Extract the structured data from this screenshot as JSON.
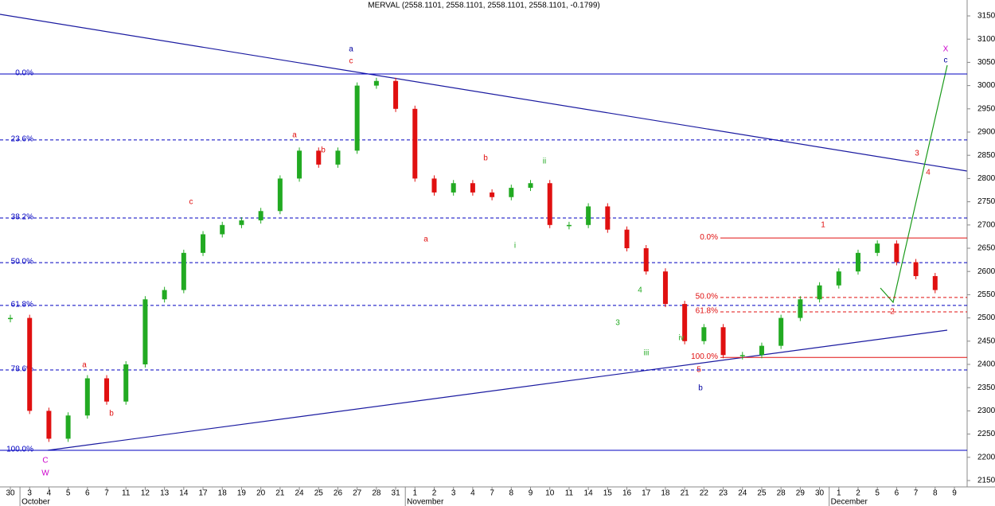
{
  "chart_data": {
    "type": "candle-close",
    "title": "MERVAL (2558.1101, 2558.1101, 2558.1101, 2558.1101, -0.1799)",
    "categories": [
      "30",
      "3",
      "4",
      "5",
      "6",
      "7",
      "11",
      "12",
      "13",
      "14",
      "17",
      "18",
      "19",
      "20",
      "21",
      "24",
      "25",
      "26",
      "27",
      "28",
      "31",
      "1",
      "2",
      "3",
      "4",
      "7",
      "8",
      "9",
      "10",
      "11",
      "14",
      "15",
      "16",
      "17",
      "18",
      "21",
      "22",
      "23",
      "24",
      "25",
      "28",
      "29",
      "30",
      "1",
      "2",
      "5",
      "6",
      "7",
      "8",
      "9"
    ],
    "months": [
      {
        "label": "October",
        "index": 1
      },
      {
        "label": "November",
        "index": 21
      },
      {
        "label": "December",
        "index": 43
      }
    ],
    "series": [
      {
        "name": "MERVAL",
        "up_color": "#22aa22",
        "down_color": "#e01010",
        "values": [
          2500,
          2300,
          2240,
          2290,
          2370,
          2320,
          2400,
          2540,
          2560,
          2640,
          2680,
          2700,
          2710,
          2730,
          2800,
          2860,
          2830,
          2860,
          3000,
          3010,
          2950,
          2800,
          2770,
          2790,
          2770,
          2760,
          2780,
          2790,
          2700,
          2700,
          2740,
          2690,
          2650,
          2600,
          2530,
          2450,
          2480,
          2420,
          2420,
          2440,
          2500,
          2540,
          2570,
          2600,
          2640,
          2660,
          2620,
          2590,
          2560,
          null
        ]
      }
    ],
    "ylim": [
      2150,
      3150
    ],
    "yticks": [
      2150,
      2200,
      2250,
      2300,
      2350,
      2400,
      2450,
      2500,
      2550,
      2600,
      2650,
      2700,
      2750,
      2800,
      2850,
      2900,
      2950,
      3000,
      3050,
      3100,
      3150
    ],
    "fib_main": {
      "color": "#0000c0",
      "levels": [
        {
          "label": "0.0%",
          "value": 3025
        },
        {
          "label": "23.6%",
          "value": 2883
        },
        {
          "label": "38.2%",
          "value": 2715
        },
        {
          "label": "50.0%",
          "value": 2619
        },
        {
          "label": "61.8%",
          "value": 2527
        },
        {
          "label": "78.6%",
          "value": 2388
        },
        {
          "label": "100.0%",
          "value": 2215
        }
      ]
    },
    "fib_second": {
      "color": "#e01010",
      "levels": [
        {
          "label": "0.0%",
          "value": 2672
        },
        {
          "label": "50.0%",
          "value": 2544
        },
        {
          "label": "61.8%",
          "value": 2513
        },
        {
          "label": "100.0%",
          "value": 2415
        }
      ]
    },
    "annotations": [
      {
        "text": "a",
        "color": "#0000a0"
      },
      {
        "text": "c",
        "color": "#e01010"
      },
      {
        "text": "a",
        "color": "#e01010"
      },
      {
        "text": "b",
        "color": "#e01010"
      },
      {
        "text": "c",
        "color": "#e01010"
      },
      {
        "text": "a",
        "color": "#e01010"
      },
      {
        "text": "b",
        "color": "#e01010"
      },
      {
        "text": "C",
        "color": "#cc00cc"
      },
      {
        "text": "W",
        "color": "#cc00cc"
      },
      {
        "text": "b",
        "color": "#e01010"
      },
      {
        "text": "a",
        "color": "#e01010"
      },
      {
        "text": "ii",
        "color": "#22aa22"
      },
      {
        "text": "i",
        "color": "#22aa22"
      },
      {
        "text": "4",
        "color": "#22aa22"
      },
      {
        "text": "3",
        "color": "#22aa22"
      },
      {
        "text": "iii",
        "color": "#22aa22"
      },
      {
        "text": "iv",
        "color": "#22aa22"
      },
      {
        "text": "5",
        "color": "#e01010"
      },
      {
        "text": "b",
        "color": "#0000a0"
      },
      {
        "text": "1",
        "color": "#e01010"
      },
      {
        "text": "2",
        "color": "#e01010"
      },
      {
        "text": "3",
        "color": "#e01010"
      },
      {
        "text": "4",
        "color": "#e01010"
      },
      {
        "text": "X",
        "color": "#cc00cc"
      },
      {
        "text": "c",
        "color": "#0000a0"
      }
    ]
  }
}
